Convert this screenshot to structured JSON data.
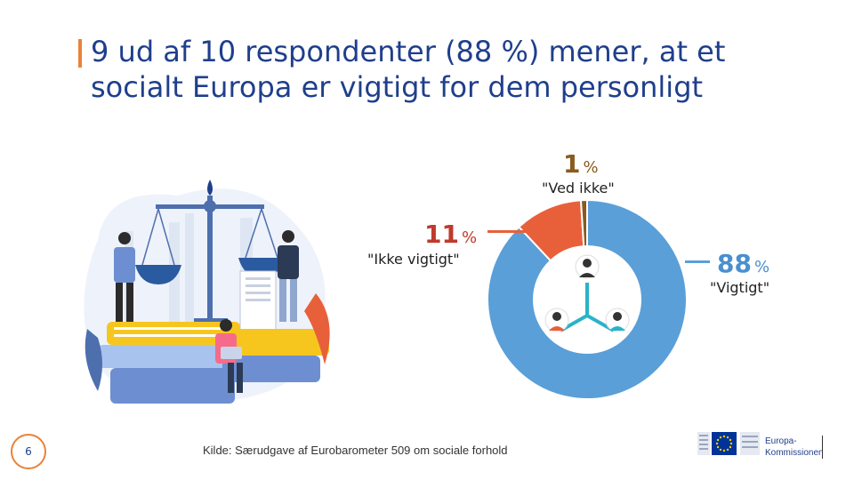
{
  "title": {
    "line1": "9 ud af 10 respondenter (88 %) mener, at et",
    "line2": "socialt Europa er vigtigt for dem personligt"
  },
  "colors": {
    "accent": "#e8823a",
    "title": "#1f3f8c",
    "vigtigt": "#5a9fd8",
    "ikke_vigtigt": "#e8603a",
    "ved_ikke": "#8a5a1e",
    "pct_11_text": "#c0392b"
  },
  "chart_data": {
    "type": "pie",
    "donut": true,
    "categories": [
      "\"Vigtigt\"",
      "\"Ikke vigtigt\"",
      "\"Ved ikke\""
    ],
    "values": [
      88,
      11,
      1
    ],
    "unit": "%",
    "title": "9 ud af 10 respondenter (88 %) mener, at et socialt Europa er vigtigt for dem personligt"
  },
  "labels": {
    "vigtigt": {
      "num": "88",
      "sym": "%",
      "text": "\"Vigtigt\""
    },
    "ikke_vigtigt": {
      "num": "11",
      "sym": "%",
      "text": "\"Ikke vigtigt\""
    },
    "ved_ikke": {
      "num": "1",
      "sym": "%",
      "text": "\"Ved ikke\""
    }
  },
  "footer": {
    "page_number": "6",
    "source": "Kilde: Særudgave af Eurobarometer 509 om sociale forhold",
    "logo_line1": "Europa-",
    "logo_line2": "Kommissionen"
  },
  "icons": [
    "scales-of-justice-illustration",
    "people-network-icon",
    "eu-flag-icon"
  ]
}
